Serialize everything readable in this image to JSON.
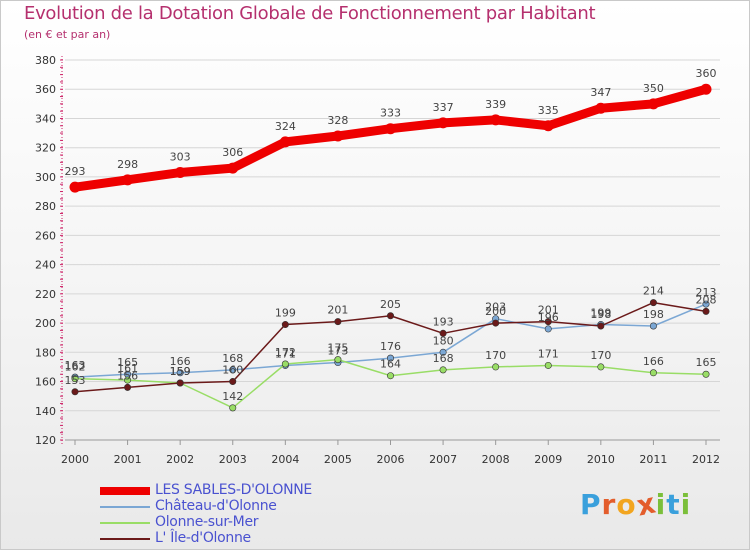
{
  "header": {
    "title": "Evolution de la Dotation Globale de Fonctionnement par Habitant",
    "subtitle": "(en € et par an)"
  },
  "brand": {
    "letters": [
      "P",
      "r",
      "o",
      "x",
      "i",
      "t",
      "i"
    ],
    "colors": [
      "#3aa0dc",
      "#e35d2c",
      "#f2a51f",
      "#e35d2c",
      "#7bbf3a",
      "#3aa0dc",
      "#7bbf3a"
    ]
  },
  "chart_data": {
    "type": "line",
    "title": "Evolution de la Dotation Globale de Fonctionnement par Habitant",
    "subtitle": "(en € et par an)",
    "xlabel": "",
    "ylabel": "",
    "categories": [
      "2000",
      "2001",
      "2002",
      "2003",
      "2004",
      "2005",
      "2006",
      "2007",
      "2008",
      "2009",
      "2010",
      "2011",
      "2012"
    ],
    "ylim": [
      120,
      380
    ],
    "yticks": [
      120,
      140,
      160,
      180,
      200,
      220,
      240,
      260,
      280,
      300,
      320,
      340,
      360,
      380
    ],
    "grid": true,
    "legend_position": "bottom-left",
    "series": [
      {
        "name": "LES SABLES-D'OLONNE",
        "color": "#ee0000",
        "values": [
          293,
          298,
          303,
          306,
          324,
          328,
          333,
          337,
          339,
          335,
          347,
          350,
          360
        ],
        "labels": [
          "293",
          "298",
          "303",
          "306",
          "324",
          "328",
          "333",
          "337",
          "339",
          "335",
          "347",
          "350",
          "360"
        ]
      },
      {
        "name": "Château-d'Olonne",
        "color": "#7ba7d4",
        "values": [
          163,
          165,
          166,
          168,
          171,
          173,
          176,
          180,
          203,
          196,
          199,
          198,
          213
        ],
        "labels": [
          "163",
          "165",
          "166",
          "168",
          "171",
          "173",
          "176",
          "180",
          "203",
          "196",
          "199",
          "198",
          "213"
        ]
      },
      {
        "name": "Olonne-sur-Mer",
        "color": "#99dd66",
        "values": [
          162,
          161,
          159,
          142,
          172,
          175,
          164,
          168,
          170,
          171,
          170,
          166,
          165
        ],
        "labels": [
          "162",
          "161",
          "159",
          "142",
          "172",
          "175",
          "164",
          "168",
          "170",
          "171",
          "170",
          "166",
          "165"
        ]
      },
      {
        "name": "L' Île-d'Olonne",
        "color": "#6b1a1a",
        "values": [
          153,
          156,
          159,
          160,
          199,
          201,
          205,
          193,
          200,
          201,
          198,
          214,
          208
        ],
        "labels": [
          "153",
          "156",
          "159",
          "160",
          "199",
          "201",
          "205",
          "193",
          "200",
          "201",
          "198",
          "214",
          "208"
        ]
      }
    ]
  }
}
